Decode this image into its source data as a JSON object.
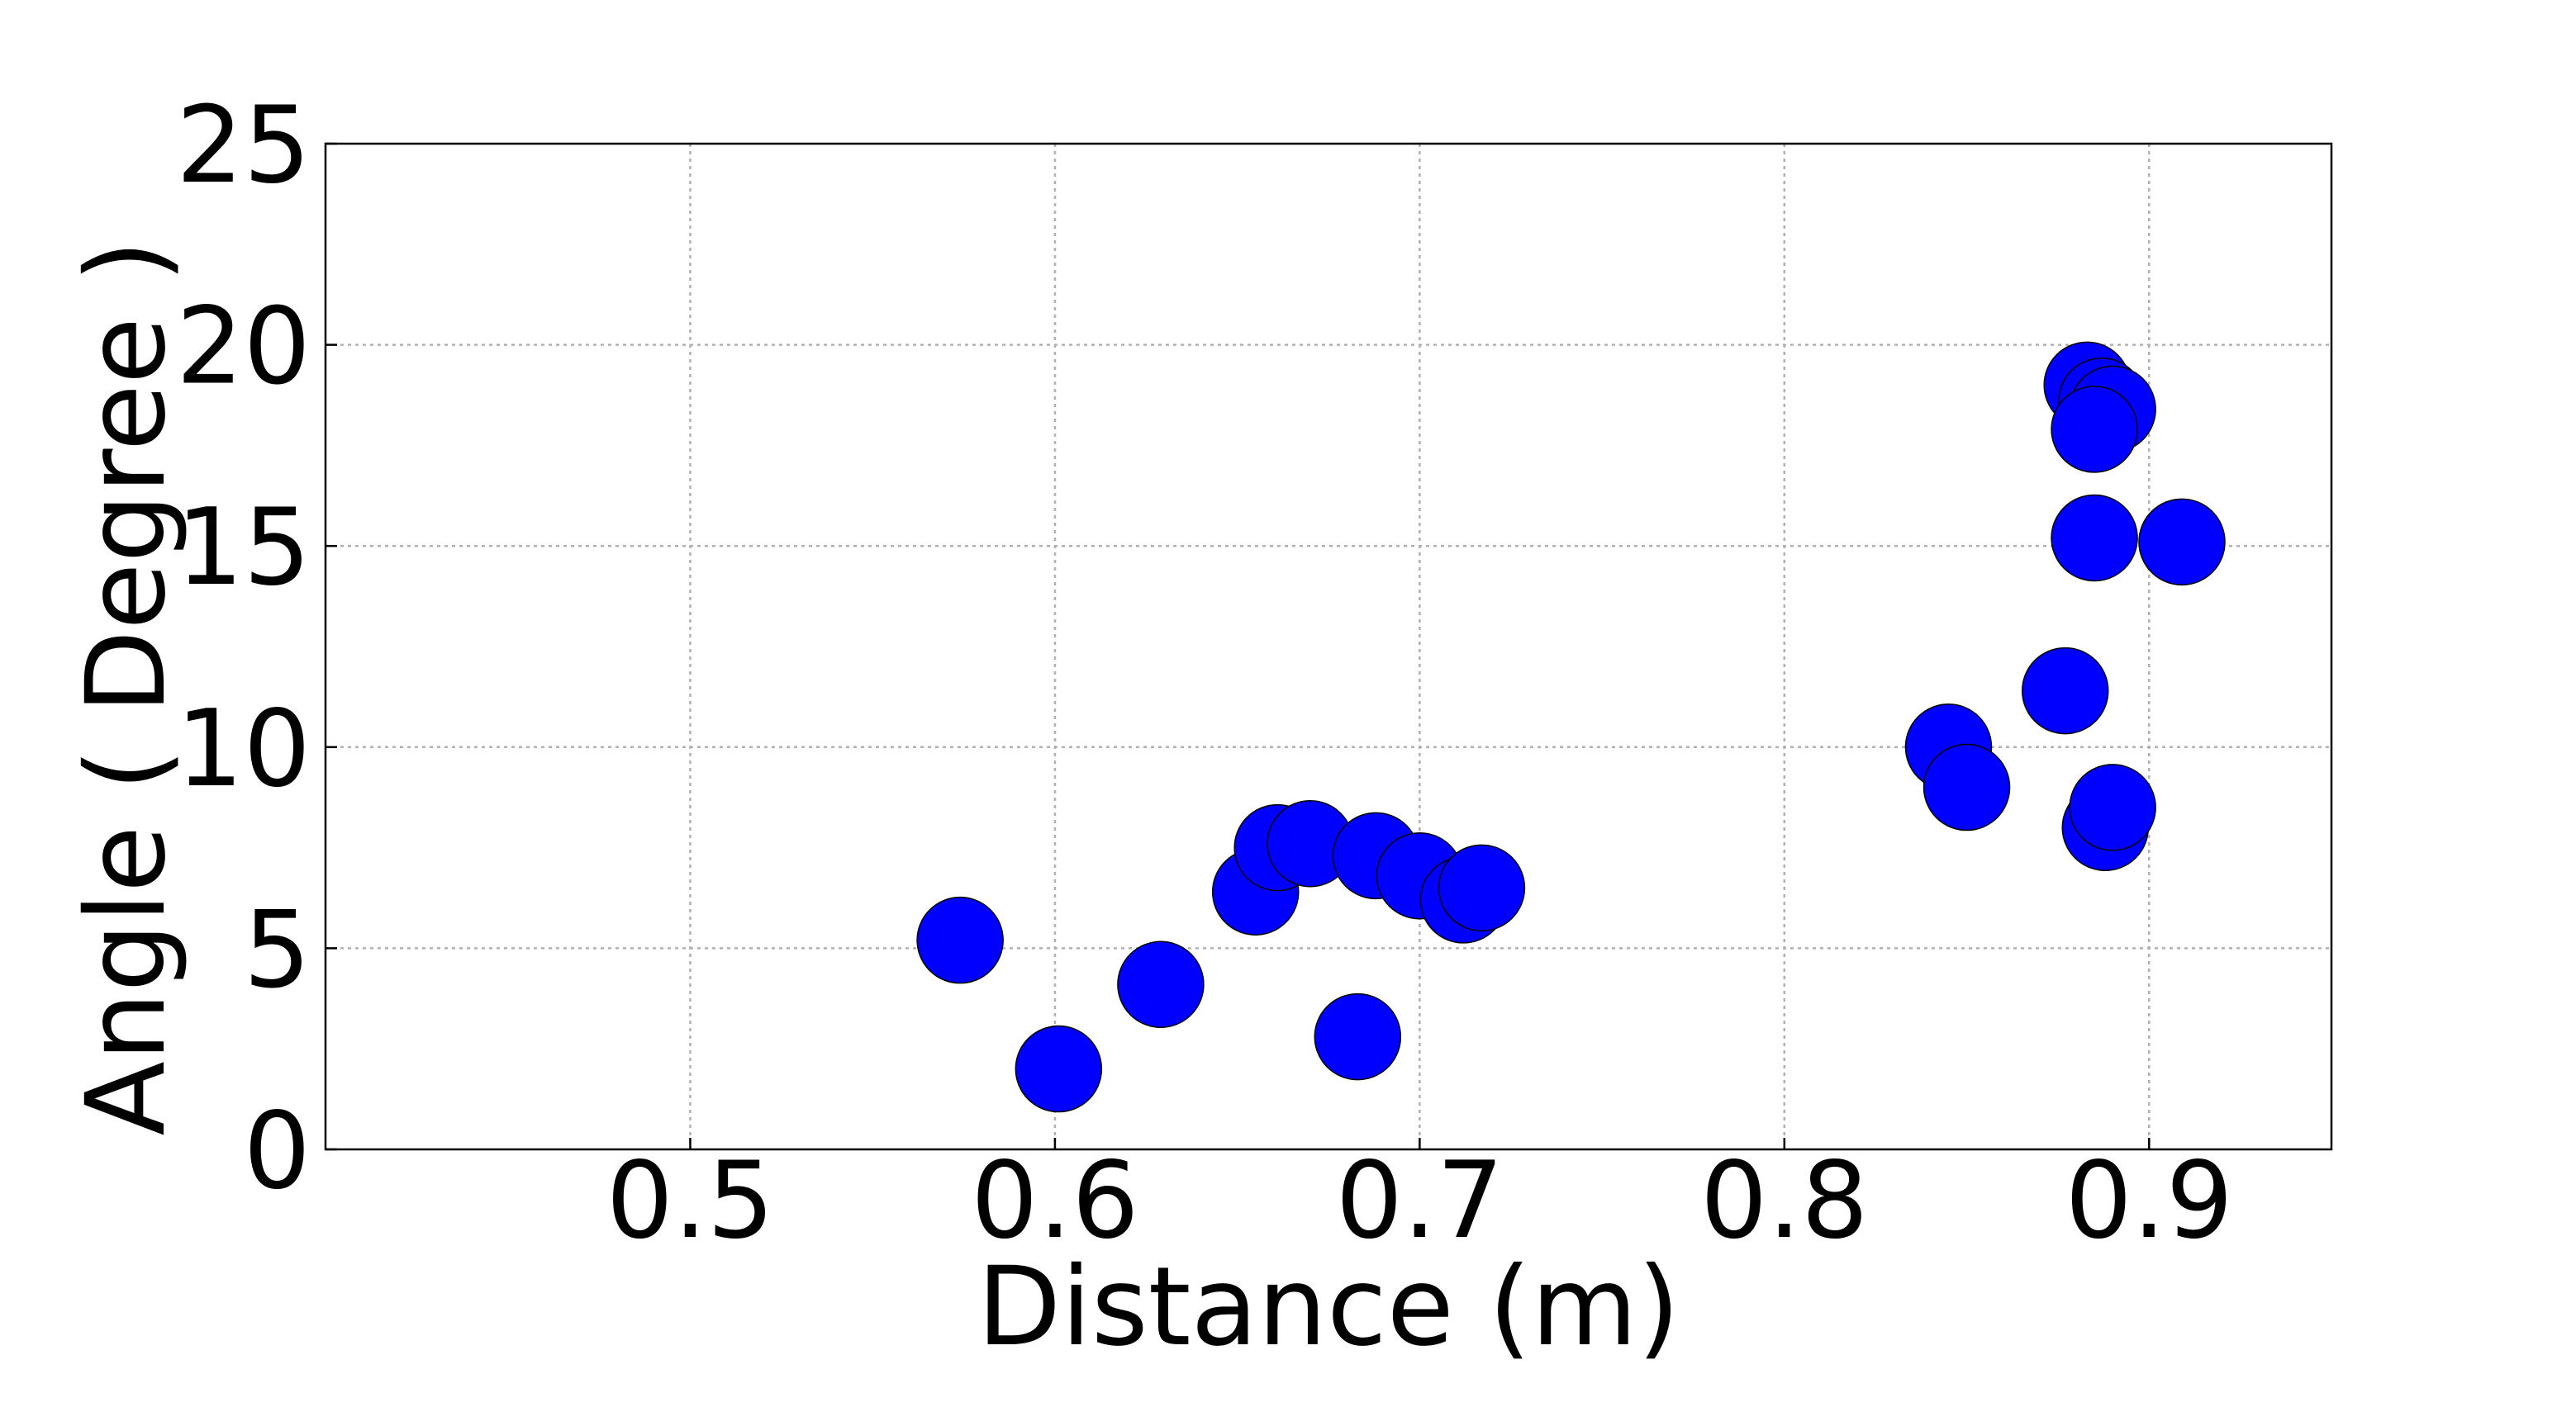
{
  "chart_data": {
    "type": "scatter",
    "title": "",
    "xlabel": "Distance (m)",
    "ylabel": "Angle ( Degree )",
    "xlim": [
      0.4,
      0.95
    ],
    "ylim": [
      0,
      25
    ],
    "xticks": [
      0.5,
      0.6,
      0.7,
      0.8,
      0.9
    ],
    "xtick_labels": [
      "0.5",
      "0.6",
      "0.7",
      "0.8",
      "0.9"
    ],
    "yticks": [
      0,
      5,
      10,
      15,
      20,
      25
    ],
    "ytick_labels": [
      "0",
      "5",
      "10",
      "15",
      "20",
      "25"
    ],
    "grid": true,
    "marker_color": "#0000ff",
    "points": [
      {
        "x": 0.574,
        "y": 5.2
      },
      {
        "x": 0.601,
        "y": 2.0
      },
      {
        "x": 0.629,
        "y": 4.1
      },
      {
        "x": 0.655,
        "y": 6.4
      },
      {
        "x": 0.661,
        "y": 7.5
      },
      {
        "x": 0.67,
        "y": 7.6
      },
      {
        "x": 0.683,
        "y": 2.8
      },
      {
        "x": 0.688,
        "y": 7.3
      },
      {
        "x": 0.7,
        "y": 6.8
      },
      {
        "x": 0.712,
        "y": 6.2
      },
      {
        "x": 0.717,
        "y": 6.5
      },
      {
        "x": 0.845,
        "y": 10.0
      },
      {
        "x": 0.85,
        "y": 9.0
      },
      {
        "x": 0.877,
        "y": 11.4
      },
      {
        "x": 0.883,
        "y": 19.0
      },
      {
        "x": 0.885,
        "y": 15.2
      },
      {
        "x": 0.887,
        "y": 18.6
      },
      {
        "x": 0.89,
        "y": 18.4
      },
      {
        "x": 0.885,
        "y": 17.9
      },
      {
        "x": 0.888,
        "y": 8.0
      },
      {
        "x": 0.89,
        "y": 8.5
      },
      {
        "x": 0.909,
        "y": 15.1
      }
    ]
  }
}
